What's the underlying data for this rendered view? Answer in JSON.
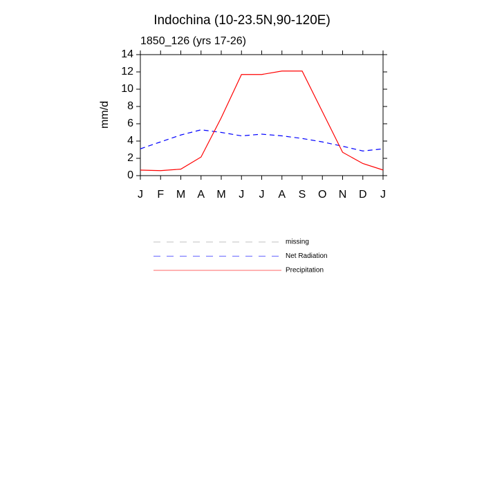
{
  "chart_data": {
    "type": "line",
    "title": "Indochina (10-23.5N,90-120E)",
    "subtitle": "1850_126 (yrs 17-26)",
    "y_label": "mm/d",
    "categories": [
      "J",
      "F",
      "M",
      "A",
      "M",
      "J",
      "J",
      "A",
      "S",
      "O",
      "N",
      "D",
      "J"
    ],
    "series": [
      {
        "name": "missing",
        "color": "#999999",
        "dash": true,
        "values": [
          null,
          null,
          null,
          null,
          null,
          null,
          null,
          null,
          null,
          null,
          null,
          null,
          null
        ]
      },
      {
        "name": "Net Radiation",
        "color": "#0000ff",
        "dash": true,
        "values": [
          3.1,
          3.9,
          4.7,
          5.3,
          5.0,
          4.6,
          4.8,
          4.6,
          4.3,
          3.9,
          3.4,
          2.85,
          3.1
        ]
      },
      {
        "name": "Precipitation",
        "color": "#ff0000",
        "dash": false,
        "values": [
          0.64,
          0.58,
          0.75,
          2.15,
          6.7,
          11.7,
          11.7,
          12.1,
          12.1,
          7.4,
          2.7,
          1.4,
          0.65
        ]
      }
    ],
    "ylim": [
      0,
      14
    ],
    "yticks": [
      0,
      2,
      4,
      6,
      8,
      10,
      12,
      14
    ]
  }
}
